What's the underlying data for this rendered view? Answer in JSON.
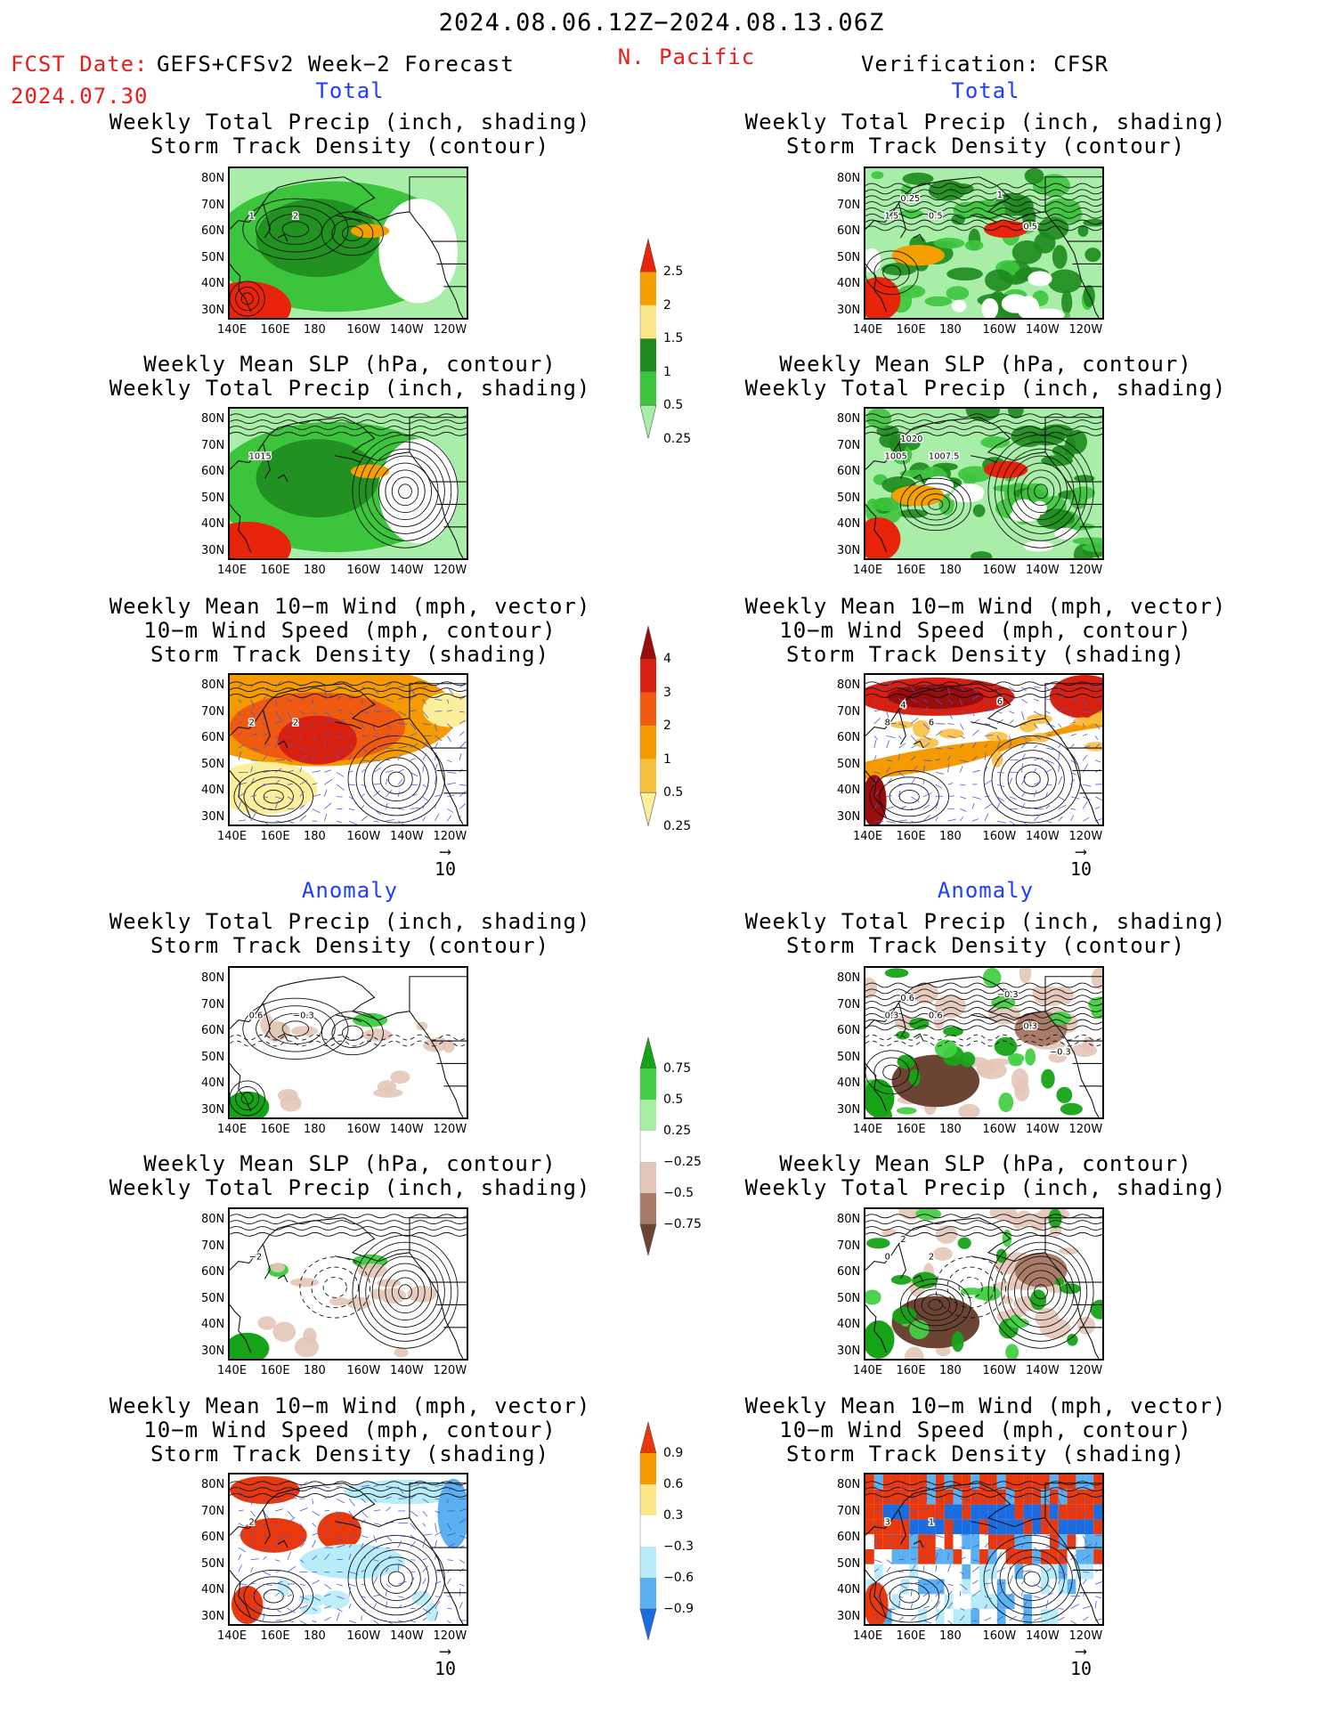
{
  "header": {
    "date_range": "2024.08.06.12Z−2024.08.13.06Z",
    "fcst_date_label": "FCST Date:",
    "fcst_model": "GEFS+CFSv2 Week−2 Forecast",
    "fcst_date": "2024.07.30",
    "region": "N. Pacific",
    "verification": "Verification: CFSR"
  },
  "sections": {
    "total": "Total",
    "anomaly": "Anomaly"
  },
  "panel_titles": {
    "precip_track": [
      "Weekly Total Precip (inch, shading)",
      "Storm Track Density (contour)"
    ],
    "slp_precip": [
      "Weekly Mean SLP (hPa, contour)",
      "Weekly Total Precip (inch, shading)"
    ],
    "wind": [
      "Weekly Mean 10−m Wind (mph, vector)",
      "10−m Wind Speed (mph, contour)",
      "Storm Track Density (shading)"
    ]
  },
  "axes": {
    "lat_ticks": [
      "80N",
      "70N",
      "60N",
      "50N",
      "40N",
      "30N"
    ],
    "lon_ticks": [
      "140E",
      "160E",
      "180",
      "160W",
      "140W",
      "120W"
    ]
  },
  "vector_scale": "10",
  "contour_labels": {
    "fcst_total_precip": [
      "1",
      "2"
    ],
    "cfsr_total_precip": [
      "1.5",
      "0.5",
      "0.25",
      "1",
      "0.5"
    ],
    "fcst_total_slp": [
      "1015"
    ],
    "cfsr_total_slp": [
      "1005",
      "1007.5",
      "1020"
    ],
    "fcst_total_wind": [
      "2",
      "2"
    ],
    "cfsr_total_wind": [
      "8",
      "6",
      "4",
      "6"
    ],
    "fcst_anom_precip": [
      "0.6",
      "−0.3"
    ],
    "cfsr_anom_precip": [
      "0.3",
      "0.6",
      "0.6",
      "−0.3",
      "0.3",
      "−0.3"
    ],
    "fcst_anom_slp": [
      "−2"
    ],
    "cfsr_anom_slp": [
      "0",
      "2",
      "2"
    ],
    "fcst_anom_wind": [
      "2"
    ],
    "cfsr_anom_wind": [
      "3",
      "1"
    ]
  },
  "colorbars": {
    "precip_total": {
      "labels": [
        "2.5",
        "2",
        "1.5",
        "1",
        "0.5",
        "0.25"
      ],
      "colors": [
        "#e8240c",
        "#f5a000",
        "#fde68a",
        "#1c8a1c",
        "#3dc43d",
        "#a8eea8"
      ]
    },
    "track_total": {
      "labels": [
        "4",
        "3",
        "2",
        "1",
        "0.5",
        "0.25"
      ],
      "colors": [
        "#9a0d0d",
        "#d82010",
        "#ef5a10",
        "#f59a00",
        "#f8c040",
        "#fcef9c"
      ]
    },
    "precip_anom": {
      "labels": [
        "0.75",
        "0.5",
        "0.25",
        "−0.25",
        "−0.5",
        "−0.75"
      ],
      "colors": [
        "#17a317",
        "#44d044",
        "#a6eea6",
        "#ffffff",
        "#e3c6b8",
        "#a87c68",
        "#6b4433"
      ]
    },
    "track_anom": {
      "labels": [
        "0.9",
        "0.6",
        "0.3",
        "−0.3",
        "−0.6",
        "−0.9"
      ],
      "colors": [
        "#e8380c",
        "#f59a00",
        "#fde68a",
        "#ffffff",
        "#b8ecf8",
        "#5ab0f0",
        "#1a6de0"
      ]
    }
  }
}
